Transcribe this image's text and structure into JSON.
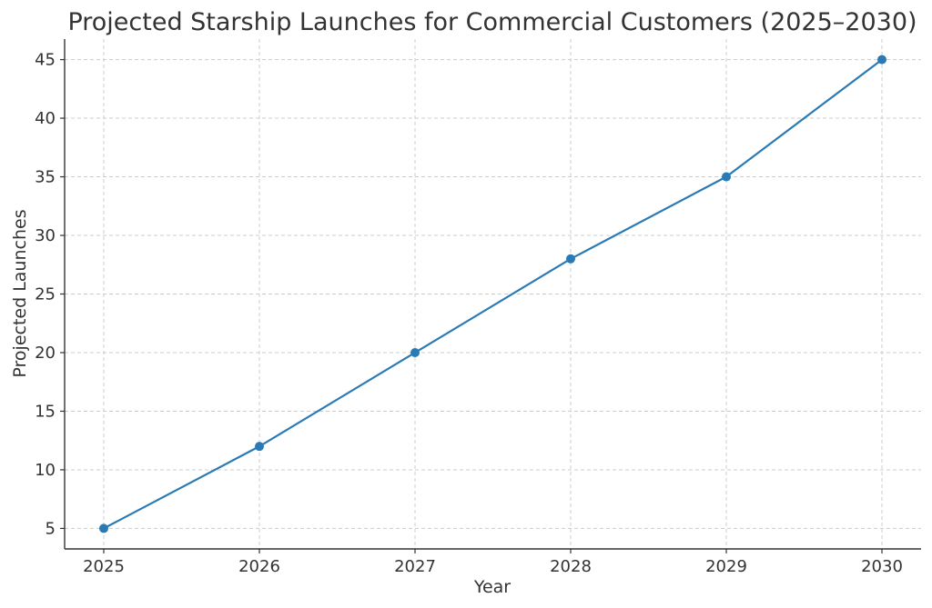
{
  "chart_data": {
    "type": "line",
    "title": "Projected Starship Launches for Commercial Customers (2025–2030)",
    "xlabel": "Year",
    "ylabel": "Projected Launches",
    "x": [
      "2025",
      "2026",
      "2027",
      "2028",
      "2029",
      "2030"
    ],
    "series": [
      {
        "values": [
          5,
          12,
          20,
          28,
          35,
          45
        ],
        "color": "#2a7ab5",
        "marker": "circle"
      }
    ],
    "yticks": [
      5,
      10,
      15,
      20,
      25,
      30,
      35,
      40,
      45
    ],
    "ylim": [
      3.25,
      46.75
    ],
    "grid": true,
    "legend": "none"
  }
}
